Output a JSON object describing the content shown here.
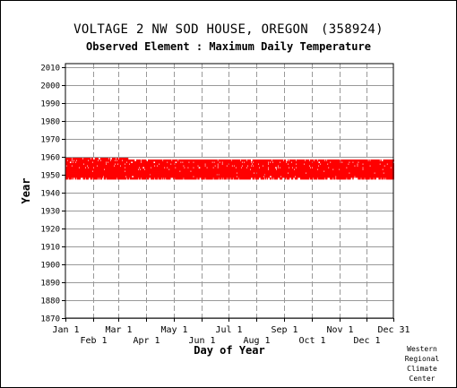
{
  "header": {
    "title": "VOLTAGE 2 NW SOD HOUSE, OREGON",
    "station_code": "(358924)",
    "subtitle": "Observed Element : Maximum Daily Temperature"
  },
  "credit": [
    "Western",
    "Regional",
    "Climate",
    "Center"
  ],
  "chart_data": {
    "type": "scatter",
    "xlabel": "Day of Year",
    "ylabel": "Year",
    "x_ticks": [
      {
        "label": "Jan 1",
        "day": 1,
        "row": 0
      },
      {
        "label": "Feb 1",
        "day": 32,
        "row": 1
      },
      {
        "label": "Mar 1",
        "day": 60,
        "row": 0
      },
      {
        "label": "Apr 1",
        "day": 91,
        "row": 1
      },
      {
        "label": "May 1",
        "day": 121,
        "row": 0
      },
      {
        "label": "Jun 1",
        "day": 152,
        "row": 1
      },
      {
        "label": "Jul 1",
        "day": 182,
        "row": 0
      },
      {
        "label": "Aug 1",
        "day": 213,
        "row": 1
      },
      {
        "label": "Sep 1",
        "day": 244,
        "row": 0
      },
      {
        "label": "Oct 1",
        "day": 274,
        "row": 1
      },
      {
        "label": "Nov 1",
        "day": 305,
        "row": 0
      },
      {
        "label": "Dec 1",
        "day": 335,
        "row": 1
      },
      {
        "label": "Dec 31",
        "day": 365,
        "row": 0
      }
    ],
    "y_ticks": [
      1870,
      1880,
      1890,
      1900,
      1910,
      1920,
      1930,
      1940,
      1950,
      1960,
      1970,
      1980,
      1990,
      2000,
      2010
    ],
    "ylim": [
      1870,
      2012
    ],
    "xlim": [
      1,
      365
    ],
    "grid": true,
    "marker_color": "#ff0000",
    "series": [
      {
        "year": 1948,
        "start_day": 1,
        "end_day": 365,
        "coverage": 0.72
      },
      {
        "year": 1949,
        "start_day": 1,
        "end_day": 365,
        "coverage": 0.96
      },
      {
        "year": 1950,
        "start_day": 1,
        "end_day": 365,
        "coverage": 0.97
      },
      {
        "year": 1951,
        "start_day": 1,
        "end_day": 365,
        "coverage": 0.98
      },
      {
        "year": 1952,
        "start_day": 1,
        "end_day": 365,
        "coverage": 0.98
      },
      {
        "year": 1953,
        "start_day": 1,
        "end_day": 365,
        "coverage": 0.97
      },
      {
        "year": 1954,
        "start_day": 1,
        "end_day": 365,
        "coverage": 0.92
      },
      {
        "year": 1955,
        "start_day": 1,
        "end_day": 365,
        "coverage": 0.95
      },
      {
        "year": 1956,
        "start_day": 1,
        "end_day": 365,
        "coverage": 0.93
      },
      {
        "year": 1957,
        "start_day": 1,
        "end_day": 365,
        "coverage": 0.9
      },
      {
        "year": 1958,
        "start_day": 1,
        "end_day": 365,
        "coverage": 0.88
      },
      {
        "year": 1959,
        "start_day": 1,
        "end_day": 70,
        "coverage": 0.85
      }
    ]
  }
}
